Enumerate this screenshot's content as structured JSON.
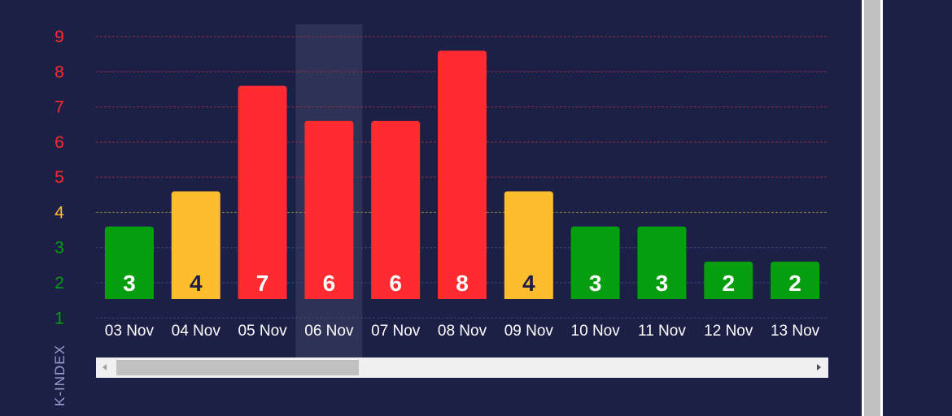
{
  "chart_data": {
    "type": "bar",
    "title": "",
    "xlabel": "",
    "ylabel": "K-INDEX",
    "categories": [
      "03 Nov",
      "04 Nov",
      "05 Nov",
      "06 Nov",
      "07 Nov",
      "08 Nov",
      "09 Nov",
      "10 Nov",
      "11 Nov",
      "12 Nov",
      "13 Nov"
    ],
    "values": [
      3,
      4,
      7,
      6,
      6,
      8,
      4,
      3,
      3,
      2,
      2
    ],
    "y_ticks": [
      "1",
      "2",
      "3",
      "4",
      "5",
      "6",
      "7",
      "8",
      "9"
    ],
    "ylim": [
      1,
      9
    ],
    "highlighted_category": "06 Nov",
    "grid": true,
    "colors": {
      "background": "#1c2046",
      "quiet": "#069e0e",
      "moderate": "#fdbe2d",
      "storm": "#ff2b2e",
      "highlight": "#2e3257"
    }
  },
  "scrollbar": {
    "left_arrow_icon": "triangle-left-icon",
    "right_arrow_icon": "triangle-right-icon"
  }
}
